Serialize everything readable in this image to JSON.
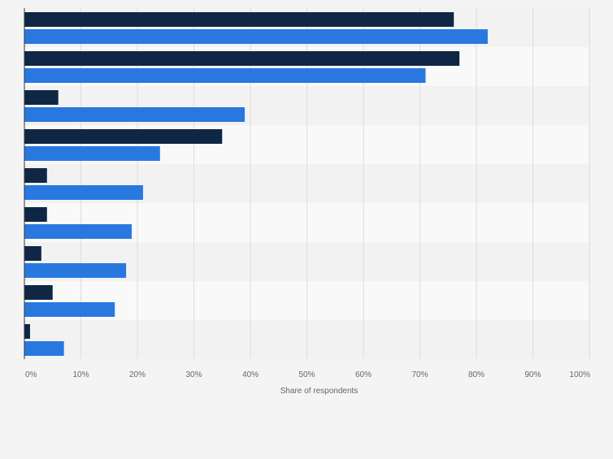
{
  "chart_data": {
    "type": "bar",
    "orientation": "horizontal",
    "categories": [
      "",
      "",
      "",
      "",
      "",
      "",
      "",
      "",
      ""
    ],
    "series": [
      {
        "color": "#0f2744",
        "values": [
          76,
          77,
          6,
          35,
          4,
          4,
          3,
          5,
          1
        ]
      },
      {
        "color": "#2878e0",
        "values": [
          82,
          71,
          39,
          24,
          21,
          19,
          18,
          16,
          7
        ]
      }
    ],
    "xlim": [
      0,
      100
    ],
    "xticks": [
      "0%",
      "10%",
      "20%",
      "30%",
      "40%",
      "50%",
      "60%",
      "70%",
      "80%",
      "90%",
      "100%"
    ],
    "xlabel": "Share of respondents",
    "grid": true,
    "band_colors": [
      "#f2f2f2",
      "#f9f9f9"
    ]
  }
}
